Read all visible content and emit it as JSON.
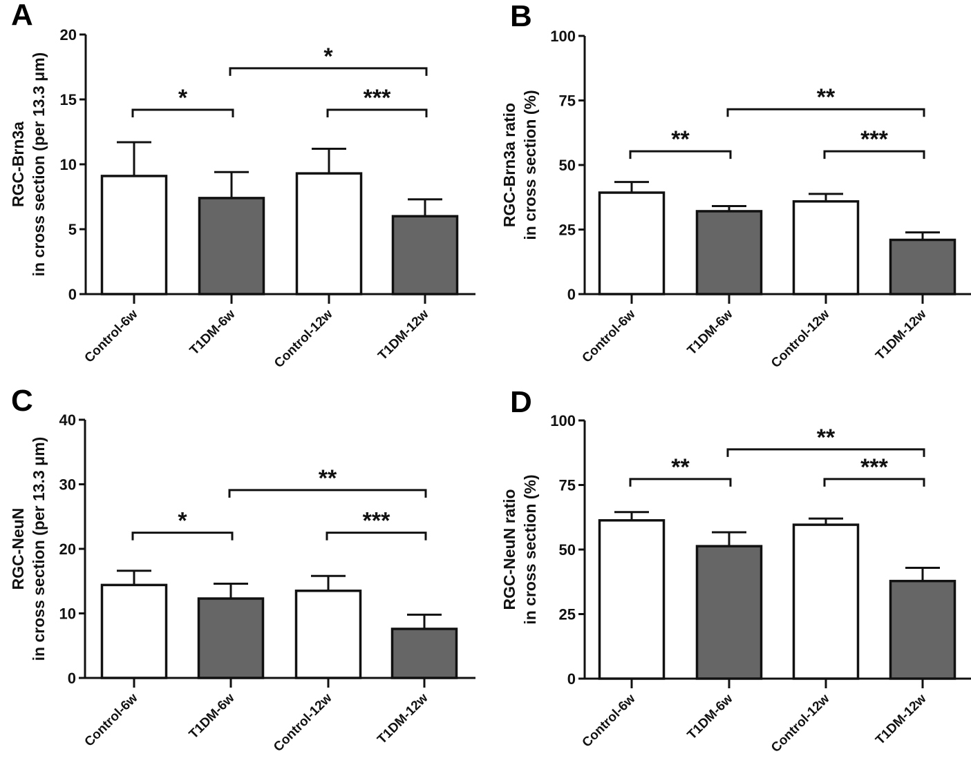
{
  "colors": {
    "control_fill": "#ffffff",
    "t1dm_fill": "#666666",
    "stroke": "#111111"
  },
  "chart_data": [
    {
      "panel": "A",
      "type": "bar",
      "categories": [
        "Control-6w",
        "T1DM-6w",
        "Control-12w",
        "T1DM-12w"
      ],
      "values": [
        9.1,
        7.4,
        9.3,
        6.0
      ],
      "error_upper": [
        11.7,
        9.4,
        11.2,
        7.3
      ],
      "fill_groups": [
        "control",
        "t1dm",
        "control",
        "t1dm"
      ],
      "ylabel_lines": [
        "RGC-Brn3a",
        "in cross section (per 13.3  μm)"
      ],
      "xlabel": "",
      "ylim": [
        0,
        20
      ],
      "yticks": [
        0,
        5,
        10,
        15,
        20
      ],
      "significance": [
        {
          "from": 0,
          "to": 1,
          "label": "*",
          "level": 14.2
        },
        {
          "from": 1,
          "to": 3,
          "label": "*",
          "level": 17.4
        },
        {
          "from": 2,
          "to": 3,
          "label": "***",
          "level": 14.2
        }
      ]
    },
    {
      "panel": "B",
      "type": "bar",
      "categories": [
        "Control-6w",
        "T1DM-6w",
        "Control-12w",
        "T1DM-12w"
      ],
      "values": [
        39.3,
        32.1,
        35.9,
        21.0
      ],
      "error_upper": [
        43.4,
        34.1,
        38.8,
        23.9
      ],
      "fill_groups": [
        "control",
        "t1dm",
        "control",
        "t1dm"
      ],
      "ylabel_lines": [
        "RGC-Brn3a ratio",
        "in cross section (%)"
      ],
      "xlabel": "",
      "ylim": [
        0,
        100
      ],
      "yticks": [
        0,
        25,
        50,
        75,
        100
      ],
      "significance": [
        {
          "from": 0,
          "to": 1,
          "label": "**",
          "level": 55.3
        },
        {
          "from": 1,
          "to": 3,
          "label": "**",
          "level": 71.6
        },
        {
          "from": 2,
          "to": 3,
          "label": "***",
          "level": 55.3
        }
      ]
    },
    {
      "panel": "C",
      "type": "bar",
      "categories": [
        "Control-6w",
        "T1DM-6w",
        "Control-12w",
        "T1DM-12w"
      ],
      "values": [
        14.4,
        12.3,
        13.5,
        7.6
      ],
      "error_upper": [
        16.6,
        14.6,
        15.8,
        9.8
      ],
      "fill_groups": [
        "control",
        "t1dm",
        "control",
        "t1dm"
      ],
      "ylabel_lines": [
        "RGC-NeuN",
        "in cross section (per 13.3  μm)"
      ],
      "xlabel": "",
      "ylim": [
        0,
        40
      ],
      "yticks": [
        0,
        10,
        20,
        30,
        40
      ],
      "significance": [
        {
          "from": 0,
          "to": 1,
          "label": "*",
          "level": 22.5
        },
        {
          "from": 1,
          "to": 3,
          "label": "**",
          "level": 29.1
        },
        {
          "from": 2,
          "to": 3,
          "label": "***",
          "level": 22.5
        }
      ]
    },
    {
      "panel": "D",
      "type": "bar",
      "categories": [
        "Control-6w",
        "T1DM-6w",
        "Control-12w",
        "T1DM-12w"
      ],
      "values": [
        61.3,
        51.3,
        59.6,
        37.8
      ],
      "error_upper": [
        64.5,
        56.7,
        62.0,
        42.9
      ],
      "fill_groups": [
        "control",
        "t1dm",
        "control",
        "t1dm"
      ],
      "ylabel_lines": [
        "RGC-NeuN ratio",
        "in cross section (%)"
      ],
      "xlabel": "",
      "ylim": [
        0,
        100
      ],
      "yticks": [
        0,
        25,
        50,
        75,
        100
      ],
      "significance": [
        {
          "from": 0,
          "to": 1,
          "label": "**",
          "level": 77.3
        },
        {
          "from": 1,
          "to": 3,
          "label": "**",
          "level": 88.8
        },
        {
          "from": 2,
          "to": 3,
          "label": "***",
          "level": 77.3
        }
      ]
    }
  ]
}
